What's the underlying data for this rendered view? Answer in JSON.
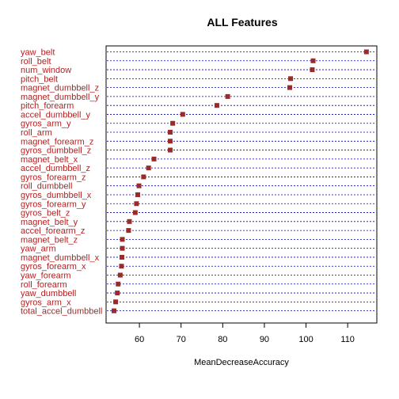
{
  "chart_data": {
    "type": "scatter",
    "title": "ALL Features",
    "xlabel": "MeanDecreaseAccuracy",
    "ylabel": "",
    "xlim": [
      52,
      117
    ],
    "xticks": [
      "60",
      "70",
      "80",
      "90",
      "100",
      "110"
    ],
    "xtick_values": [
      60,
      70,
      80,
      90,
      100,
      110
    ],
    "grid": true,
    "colors": {
      "point": "#9b2a2a",
      "label": "#b22222",
      "gridline": "#0000cc"
    },
    "categories": [
      "yaw_belt",
      "roll_belt",
      "num_window",
      "pitch_belt",
      "magnet_dumbbell_z",
      "magnet_dumbbell_y",
      "pitch_forearm",
      "accel_dumbbell_y",
      "gyros_arm_y",
      "roll_arm",
      "magnet_forearm_z",
      "gyros_dumbbell_z",
      "magnet_belt_x",
      "accel_dumbbell_z",
      "gyros_forearm_z",
      "roll_dumbbell",
      "gyros_dumbbell_x",
      "gyros_forearm_y",
      "gyros_belt_z",
      "magnet_belt_y",
      "accel_forearm_z",
      "magnet_belt_z",
      "yaw_arm",
      "magnet_dumbbell_x",
      "gyros_forearm_x",
      "yaw_forearm",
      "roll_forearm",
      "yaw_dumbbell",
      "gyros_arm_x",
      "total_accel_dumbbell"
    ],
    "values": [
      114.5,
      101.7,
      101.5,
      96.3,
      96.1,
      81.2,
      78.6,
      70.4,
      68.0,
      67.4,
      67.4,
      67.4,
      63.5,
      62.2,
      61.0,
      59.9,
      59.6,
      59.3,
      59.0,
      57.6,
      57.4,
      55.9,
      55.9,
      55.8,
      55.7,
      55.4,
      54.9,
      54.7,
      54.3,
      53.9
    ]
  }
}
